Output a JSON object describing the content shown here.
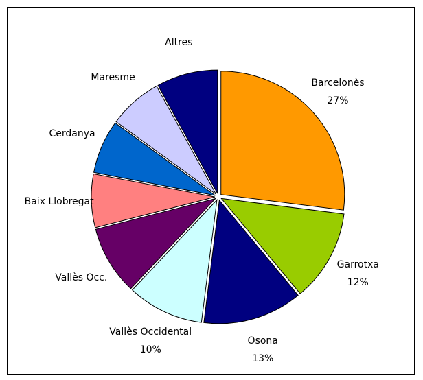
{
  "chart_data": {
    "type": "pie",
    "categories": [
      "Barcelonès",
      "Garrotxa",
      "Osona",
      "Vallès Occidental",
      "Vallès Occ.",
      "Baix Llobregat",
      "Cerdanya",
      "Maresme",
      "Altres"
    ],
    "values": [
      27,
      12,
      13,
      10,
      9,
      7,
      7,
      7,
      8
    ],
    "value_labels": [
      "27%",
      "12%",
      "13%",
      "10%",
      null,
      null,
      null,
      null,
      null
    ],
    "colors": [
      "#ff9900",
      "#99cc00",
      "#000080",
      "#ccffff",
      "#660066",
      "#ff8080",
      "#0066cc",
      "#ccccff",
      "#000080"
    ]
  }
}
